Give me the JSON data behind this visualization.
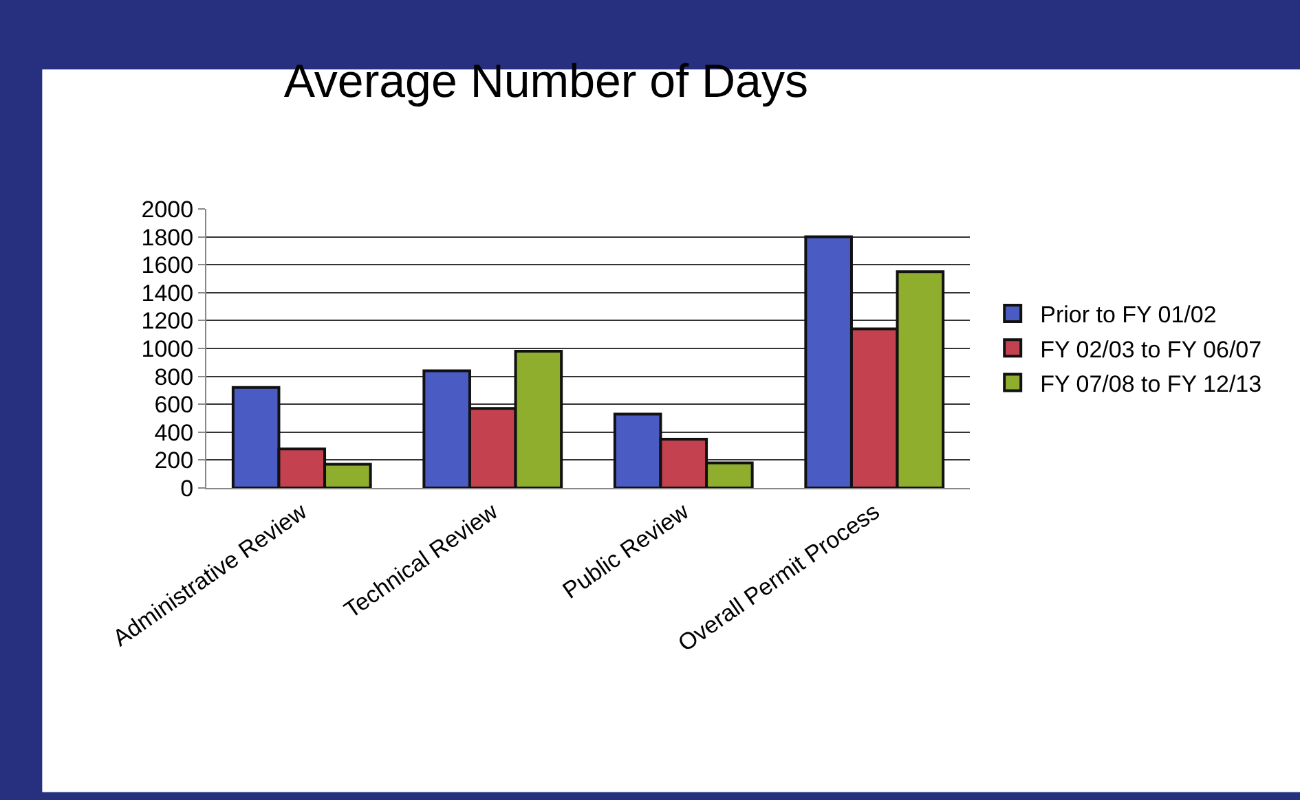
{
  "chart_data": {
    "type": "bar",
    "title": "Average Number of Days",
    "categories": [
      "Administrative Review",
      "Technical Review",
      "Public Review",
      "Overall Permit Process"
    ],
    "series": [
      {
        "name": "Prior to FY 01/02",
        "color": "#4a5bc4",
        "values": [
          720,
          840,
          530,
          1800
        ]
      },
      {
        "name": "FY 02/03 to FY 06/07",
        "color": "#c4424f",
        "values": [
          280,
          570,
          350,
          1140
        ]
      },
      {
        "name": "FY 07/08 to FY 12/13",
        "color": "#8fae2e",
        "values": [
          170,
          980,
          180,
          1550
        ]
      }
    ],
    "ylim": [
      0,
      2000
    ],
    "yticks": [
      0,
      200,
      400,
      600,
      800,
      1000,
      1200,
      1400,
      1600,
      1800,
      2000
    ],
    "grid": "y",
    "legend": "right"
  }
}
